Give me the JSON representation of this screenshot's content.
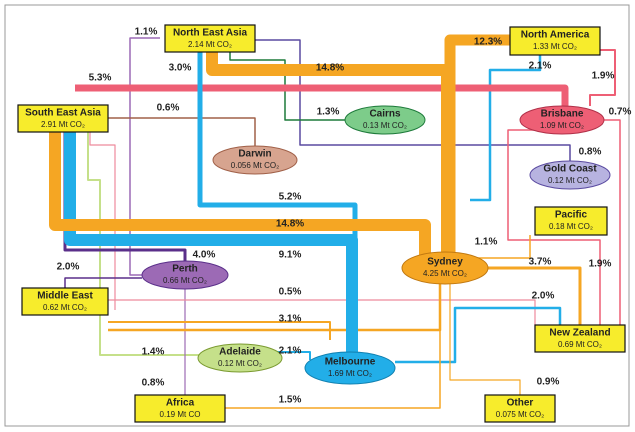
{
  "nodes": [
    {
      "label": "North East Asia",
      "value": "2.14 Mt CO₂"
    },
    {
      "label": "North America",
      "value": "1.33 Mt CO₂"
    },
    {
      "label": "South East Asia",
      "value": "2.91 Mt CO₂"
    },
    {
      "label": "Cairns",
      "value": "0.13 Mt CO₂"
    },
    {
      "label": "Brisbane",
      "value": "1.09 Mt CO₂"
    },
    {
      "label": "Darwin",
      "value": "0.056 Mt CO₂"
    },
    {
      "label": "Gold Coast",
      "value": "0.12 Mt CO₂"
    },
    {
      "label": "Pacific",
      "value": "0.18 Mt CO₂"
    },
    {
      "label": "Perth",
      "value": "0.66 Mt CO₂"
    },
    {
      "label": "Sydney",
      "value": "4.25 Mt CO₂"
    },
    {
      "label": "Middle East",
      "value": "0.62 Mt CO₂"
    },
    {
      "label": "New Zealand",
      "value": "0.69 Mt CO₂"
    },
    {
      "label": "Adelaide",
      "value": "0.12 Mt CO₂"
    },
    {
      "label": "Melbourne",
      "value": "1.69 Mt CO₂"
    },
    {
      "label": "Africa",
      "value": "0.19 Mt CO"
    },
    {
      "label": "Other",
      "value": "0.075 Mt CO₂"
    }
  ],
  "flow_labels": [
    "1.1%",
    "3.0%",
    "14.8%",
    "12.3%",
    "2.1%",
    "1.9%",
    "5.3%",
    "0.6%",
    "1.3%",
    "0.7%",
    "0.8%",
    "5.2%",
    "14.8%",
    "1.1%",
    "4.0%",
    "9.1%",
    "3.7%",
    "1.9%",
    "2.0%",
    "0.5%",
    "2.0%",
    "3.1%",
    "1.4%",
    "2.1%",
    "0.9%",
    "0.8%",
    "1.5%"
  ]
}
